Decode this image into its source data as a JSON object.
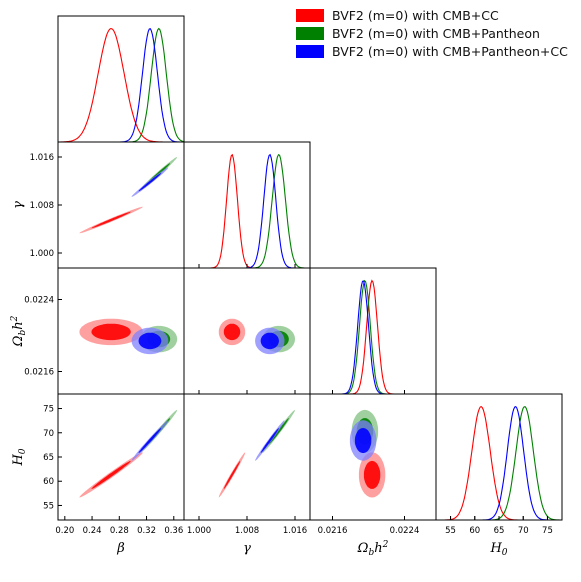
{
  "chart_data": {
    "type": "triangle-corner",
    "parameters": [
      {
        "name": "beta",
        "label": "β",
        "range": [
          0.19,
          0.375
        ],
        "ticks": [
          0.2,
          0.24,
          0.28,
          0.32,
          0.36
        ],
        "tick_labels": [
          "0.20",
          "0.24",
          "0.28",
          "0.32",
          "0.36"
        ]
      },
      {
        "name": "gamma",
        "label": "γ",
        "range": [
          0.9975,
          1.0185
        ],
        "ticks": [
          1.0,
          1.008,
          1.016
        ],
        "tick_labels": [
          "1.000",
          "1.008",
          "1.016"
        ]
      },
      {
        "name": "omega_b_h2",
        "label": "Ωbh²",
        "range": [
          0.02135,
          0.02275
        ],
        "ticks": [
          0.0216,
          0.0224
        ],
        "tick_labels": [
          "0.0216",
          "0.0224"
        ]
      },
      {
        "name": "H0",
        "label": "H0",
        "range": [
          52,
          78
        ],
        "ticks": [
          55,
          60,
          65,
          70,
          75
        ],
        "tick_labels": [
          "55",
          "60",
          "65",
          "70",
          "75"
        ]
      }
    ],
    "series": [
      {
        "name": "BVF2 (m=0) with CMB+CC",
        "color": "#ff0000",
        "fill_outer": "#ff8080",
        "fill_inner": "#ff0000",
        "mean": [
          0.268,
          1.0055,
          0.02204,
          61.3
        ],
        "sigma": [
          0.019,
          0.0009,
          6e-05,
          1.9
        ],
        "rho": {
          "0-1": 0.99,
          "0-3": 0.99,
          "1-3": 0.99,
          "0-2": 0.0,
          "1-2": 0.0,
          "2-3": 0.0
        }
      },
      {
        "name": "BVF2 (m=0) with CMB+Pantheon",
        "color": "#008000",
        "fill_outer": "#80c080",
        "fill_inner": "#008000",
        "mean": [
          0.338,
          1.0133,
          0.02196,
          70.3
        ],
        "sigma": [
          0.011,
          0.0011,
          6e-05,
          1.8
        ],
        "rho": {
          "0-1": 0.99,
          "0-3": 0.99,
          "1-3": 0.99,
          "0-2": 0.0,
          "1-2": 0.0,
          "2-3": 0.0
        }
      },
      {
        "name": "BVF2 (m=0) with CMB+Pantheon+CC",
        "color": "#0000ff",
        "fill_outer": "#8080ff",
        "fill_inner": "#0000ff",
        "mean": [
          0.325,
          1.0118,
          0.02194,
          68.4
        ],
        "sigma": [
          0.011,
          0.001,
          6e-05,
          1.7
        ],
        "rho": {
          "0-1": 0.99,
          "0-3": 0.99,
          "1-3": 0.99,
          "0-2": 0.0,
          "1-2": 0.0,
          "2-3": 0.0
        }
      }
    ],
    "legend": {
      "position": "top-right"
    }
  },
  "legend_items": [
    {
      "label": "BVF2 (m=0) with CMB+CC",
      "color": "#ff0000"
    },
    {
      "label": "BVF2 (m=0) with CMB+Pantheon",
      "color": "#008000"
    },
    {
      "label": "BVF2 (m=0) with CMB+Pantheon+CC",
      "color": "#0000ff"
    }
  ]
}
